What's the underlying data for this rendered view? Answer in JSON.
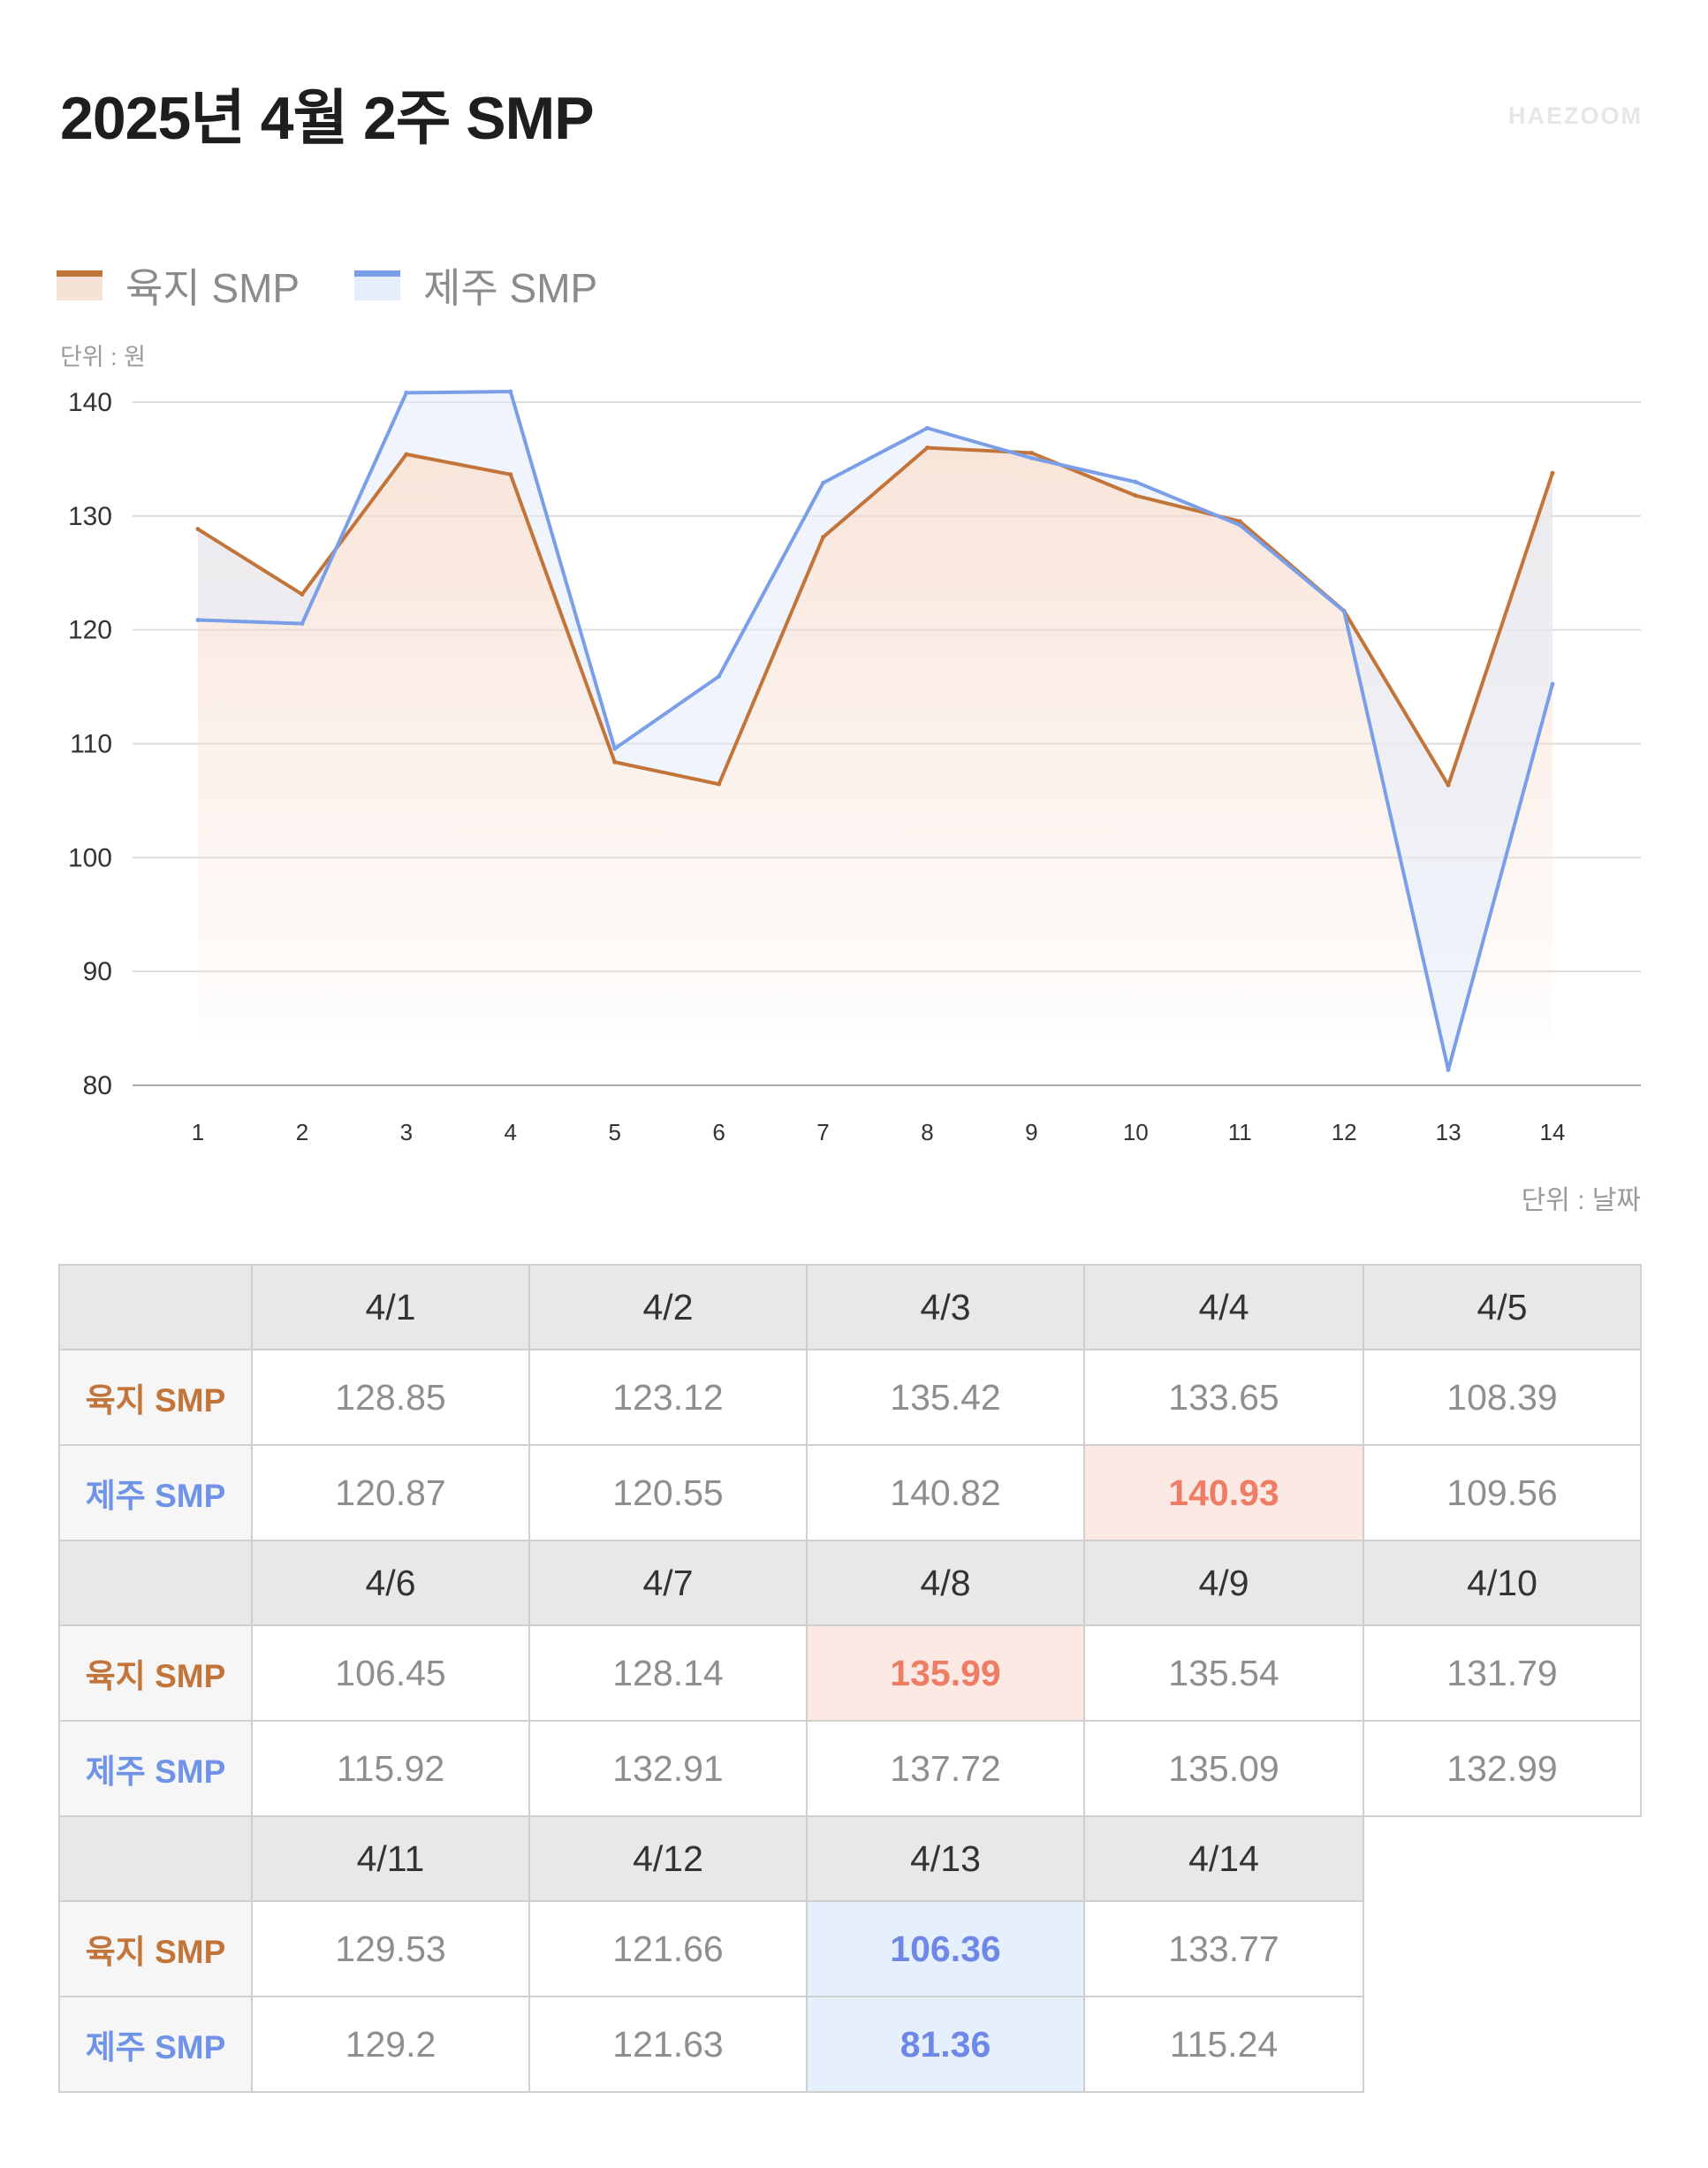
{
  "header": {
    "title": "2025년 4월 2주 SMP",
    "brand": "HAEZOOM"
  },
  "colors": {
    "land": "#c27439",
    "jeju": "#7b9ee8",
    "land_fill": "#f6dccd",
    "jeju_fill": "#e3ecfb",
    "max_bg": "#fde9e4",
    "max_text": "#ef7c64",
    "min_bg": "#e6f0fd",
    "min_text": "#6f88e8"
  },
  "chart_data": {
    "type": "line",
    "x": [
      1,
      2,
      3,
      4,
      5,
      6,
      7,
      8,
      9,
      10,
      11,
      12,
      13,
      14
    ],
    "series": [
      {
        "name": "육지 SMP",
        "values": [
          128.85,
          123.12,
          135.42,
          133.65,
          108.39,
          106.45,
          128.14,
          135.99,
          135.54,
          131.79,
          129.53,
          121.66,
          106.36,
          133.77
        ]
      },
      {
        "name": "제주 SMP",
        "values": [
          120.87,
          120.55,
          140.82,
          140.93,
          109.56,
          115.92,
          132.91,
          137.72,
          135.09,
          132.99,
          129.2,
          121.63,
          81.36,
          115.24
        ]
      }
    ],
    "ylim": [
      80,
      140
    ],
    "yticks": [
      80,
      90,
      100,
      110,
      120,
      130,
      140
    ],
    "ylabel": "단위 : 원",
    "xlabel": "단위 : 날짜",
    "legend": "top-left",
    "grid": true
  },
  "table": {
    "row_labels": [
      "육지 SMP",
      "제주 SMP"
    ],
    "blocks": [
      {
        "dates": [
          "4/1",
          "4/2",
          "4/3",
          "4/4",
          "4/5"
        ],
        "land": [
          "128.85",
          "123.12",
          "135.42",
          "133.65",
          "108.39"
        ],
        "jeju": [
          "120.87",
          "120.55",
          "140.82",
          "140.93",
          "109.56"
        ]
      },
      {
        "dates": [
          "4/6",
          "4/7",
          "4/8",
          "4/9",
          "4/10"
        ],
        "land": [
          "106.45",
          "128.14",
          "135.99",
          "135.54",
          "131.79"
        ],
        "jeju": [
          "115.92",
          "132.91",
          "137.72",
          "135.09",
          "132.99"
        ]
      },
      {
        "dates": [
          "4/11",
          "4/12",
          "4/13",
          "4/14"
        ],
        "land": [
          "129.53",
          "121.66",
          "106.36",
          "133.77"
        ],
        "jeju": [
          "129.2",
          "121.63",
          "81.36",
          "115.24"
        ]
      }
    ]
  }
}
